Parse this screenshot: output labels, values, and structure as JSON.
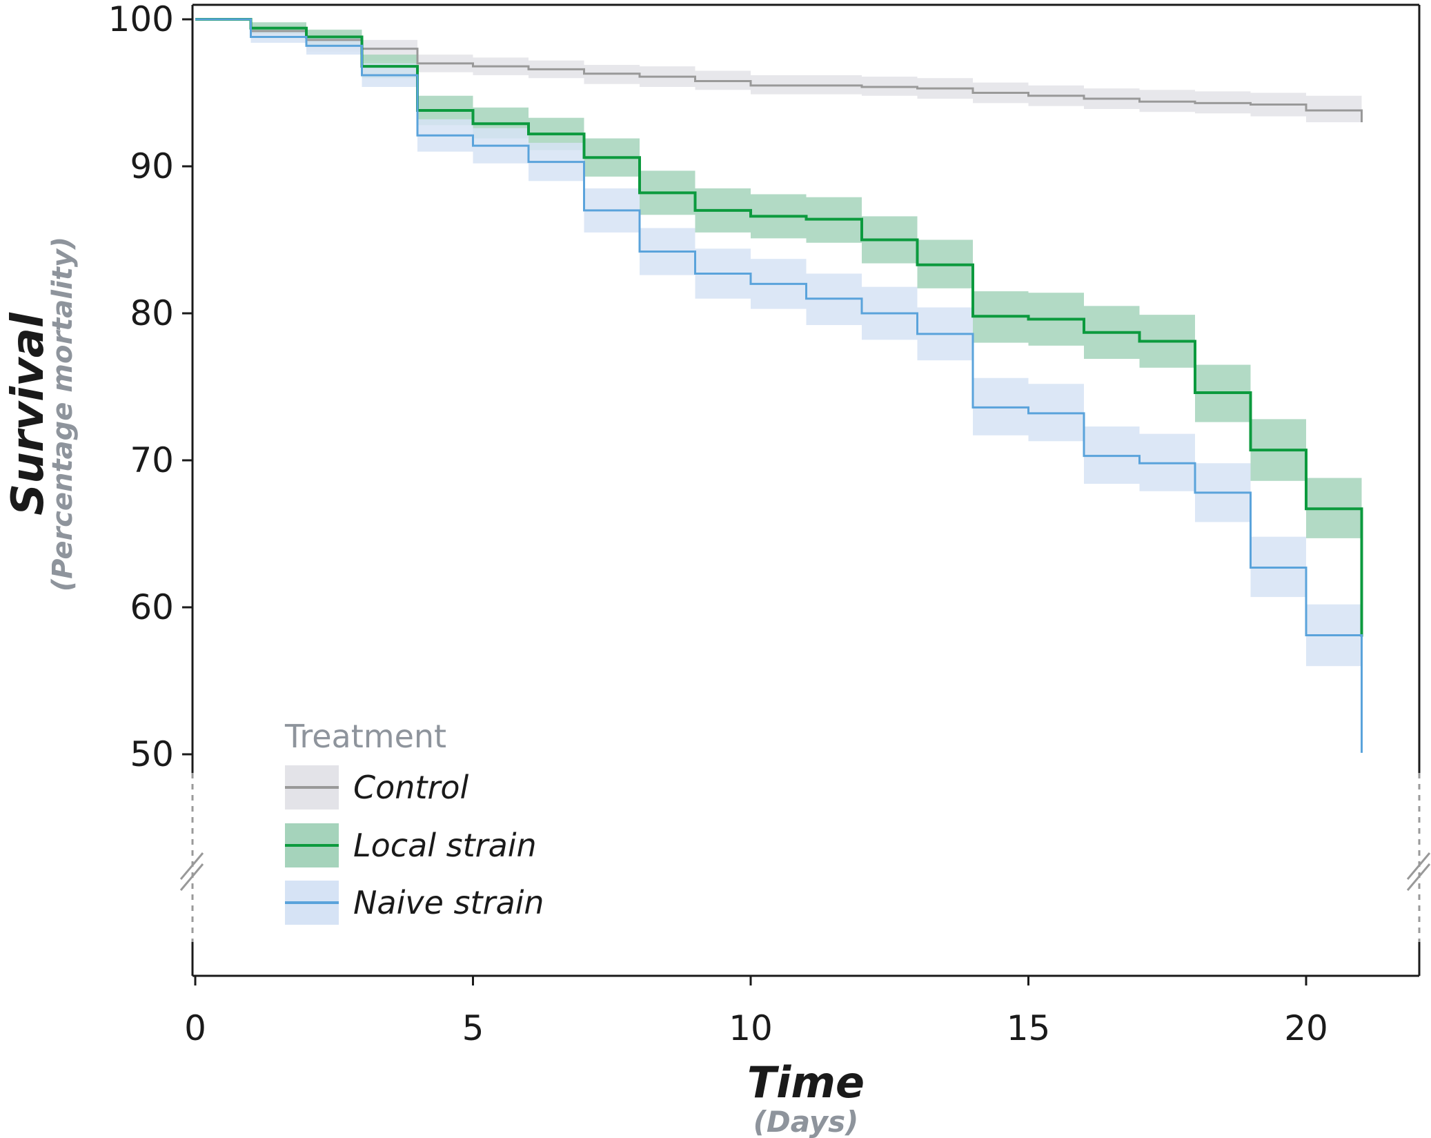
{
  "chart_data": {
    "type": "line",
    "step": true,
    "title": "",
    "xlabel": "Time",
    "xlabel_sub": "(Days)",
    "ylabel": "Survival",
    "ylabel_sub": "(Percentage mortality)",
    "xlim": [
      0,
      22
    ],
    "ylim": [
      50,
      100
    ],
    "y_axis_break_below": 50,
    "x_ticks": [
      0,
      5,
      10,
      15,
      20
    ],
    "y_ticks": [
      50,
      60,
      70,
      80,
      90,
      100
    ],
    "legend_title": "Treatment",
    "legend_position": "bottom-left",
    "x": [
      0,
      1,
      2,
      3,
      4,
      5,
      6,
      7,
      8,
      9,
      10,
      11,
      12,
      13,
      14,
      15,
      16,
      17,
      18,
      19,
      20,
      21
    ],
    "series": [
      {
        "name": "Control",
        "color": "#999999",
        "band_color": "#e3e3e8",
        "values": [
          100,
          99.2,
          98.6,
          98.0,
          97.0,
          96.8,
          96.6,
          96.3,
          96.1,
          95.8,
          95.5,
          95.5,
          95.4,
          95.3,
          95.0,
          94.8,
          94.6,
          94.4,
          94.3,
          94.2,
          93.8,
          93.0
        ],
        "lower": [
          100,
          98.8,
          97.8,
          97.2,
          96.4,
          96.2,
          96.0,
          95.6,
          95.4,
          95.2,
          94.9,
          94.9,
          94.8,
          94.6,
          94.3,
          94.1,
          93.9,
          93.7,
          93.6,
          93.4,
          93.0,
          93.0
        ],
        "upper": [
          100,
          99.6,
          99.2,
          98.6,
          97.6,
          97.4,
          97.2,
          96.9,
          96.8,
          96.5,
          96.2,
          96.2,
          96.1,
          96.0,
          95.7,
          95.5,
          95.3,
          95.2,
          95.1,
          95.0,
          94.8,
          94.8
        ]
      },
      {
        "name": "Local strain",
        "color": "#0c9a3e",
        "band_color": "#a5d3bb",
        "values": [
          100,
          99.4,
          98.8,
          96.8,
          93.8,
          92.9,
          92.2,
          90.6,
          88.2,
          87.0,
          86.6,
          86.4,
          85.0,
          83.3,
          79.8,
          79.6,
          78.7,
          78.1,
          74.6,
          70.7,
          66.7,
          58.0
        ],
        "lower": [
          100,
          99.0,
          98.2,
          96.0,
          92.8,
          91.9,
          91.1,
          89.3,
          86.7,
          85.5,
          85.1,
          84.8,
          83.4,
          81.7,
          78.0,
          77.8,
          76.9,
          76.3,
          72.6,
          68.6,
          64.7,
          64.7
        ],
        "upper": [
          100,
          99.8,
          99.3,
          97.6,
          94.8,
          94.0,
          93.3,
          91.9,
          89.7,
          88.5,
          88.1,
          87.9,
          86.6,
          85.0,
          81.5,
          81.4,
          80.5,
          79.9,
          76.5,
          72.8,
          68.8,
          68.8
        ]
      },
      {
        "name": "Naive strain",
        "color": "#5aa3db",
        "band_color": "#d6e3f5",
        "values": [
          100,
          98.8,
          98.2,
          96.2,
          92.1,
          91.4,
          90.3,
          87.0,
          84.2,
          82.7,
          82.0,
          81.0,
          80.0,
          78.6,
          73.6,
          73.2,
          70.3,
          69.8,
          67.8,
          62.7,
          58.1,
          50.1
        ],
        "lower": [
          100,
          98.4,
          97.6,
          95.4,
          91.0,
          90.2,
          89.0,
          85.5,
          82.6,
          81.0,
          80.3,
          79.2,
          78.2,
          76.8,
          71.7,
          71.3,
          68.4,
          67.9,
          65.8,
          60.7,
          56.0,
          56.0
        ],
        "upper": [
          100,
          99.2,
          98.8,
          97.0,
          93.2,
          92.6,
          91.6,
          88.5,
          85.8,
          84.4,
          83.7,
          82.7,
          81.8,
          80.4,
          75.6,
          75.2,
          72.3,
          71.8,
          69.8,
          64.8,
          60.2,
          60.2
        ]
      }
    ]
  }
}
